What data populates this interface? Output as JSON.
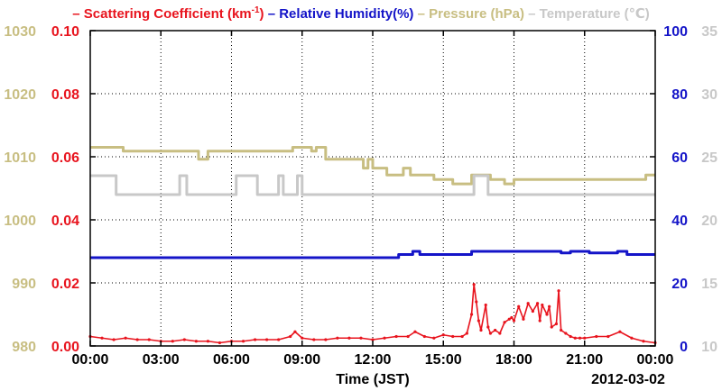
{
  "chart_data": {
    "type": "line",
    "legend": [
      {
        "prefix": "–",
        "name": "Scattering Coefficient (km",
        "sup": "-1",
        "suffix": ")",
        "color": "#e8141e"
      },
      {
        "prefix": "–",
        "name": "Relative Humidity(%)",
        "color": "#1414c8"
      },
      {
        "prefix": "–",
        "name": "Pressure (hPa)",
        "color": "#c8be82"
      },
      {
        "prefix": "–",
        "name": "Temperature (℃)",
        "color": "#c8c8c8"
      }
    ],
    "xlabel": "Time (JST)",
    "date_label": "2012-03-02",
    "x_range": [
      0,
      24
    ],
    "x_ticks": [
      {
        "v": 0,
        "label": "00:00"
      },
      {
        "v": 3,
        "label": "03:00"
      },
      {
        "v": 6,
        "label": "06:00"
      },
      {
        "v": 9,
        "label": "09:00"
      },
      {
        "v": 12,
        "label": "12:00"
      },
      {
        "v": 15,
        "label": "15:00"
      },
      {
        "v": 18,
        "label": "18:00"
      },
      {
        "v": 21,
        "label": "21:00"
      },
      {
        "v": 24,
        "label": "00:00"
      }
    ],
    "axes": {
      "pressure": {
        "range": [
          980,
          1030
        ],
        "ticks": [
          "980",
          "990",
          "1000",
          "1010",
          "1020",
          "1030"
        ],
        "color": "#c8be82"
      },
      "scattering": {
        "range": [
          0,
          0.1
        ],
        "ticks": [
          "0.00",
          "0.02",
          "0.04",
          "0.06",
          "0.08",
          "0.10"
        ],
        "color": "#e8141e"
      },
      "humidity": {
        "range": [
          0,
          100
        ],
        "ticks": [
          "0",
          "20",
          "40",
          "60",
          "80",
          "100"
        ],
        "color": "#1414c8"
      },
      "temperature": {
        "range": [
          10,
          35
        ],
        "ticks": [
          "10",
          "15",
          "20",
          "25",
          "30",
          "35"
        ],
        "color": "#c8c8c8"
      }
    },
    "grid": true,
    "series": [
      {
        "name": "Pressure (hPa)",
        "axis": "pressure",
        "color": "#c8be82",
        "step": true,
        "x": [
          0,
          1.4,
          4.6,
          5.0,
          8.6,
          9.4,
          9.6,
          10.0,
          11.6,
          11.8,
          12.0,
          12.6,
          13.3,
          13.6,
          14.6,
          15.4,
          16.2,
          17.0,
          17.6,
          18.0,
          18.8,
          23.6,
          24
        ],
        "y": [
          1011.5,
          1010.9,
          1009.6,
          1010.9,
          1011.5,
          1010.9,
          1011.5,
          1009.6,
          1008.2,
          1009.6,
          1008.2,
          1007.1,
          1008.2,
          1007.1,
          1006.4,
          1005.7,
          1007.1,
          1006.4,
          1005.7,
          1006.4,
          1006.4,
          1007.1,
          1007.1
        ]
      },
      {
        "name": "Temperature (℃)",
        "axis": "temperature",
        "color": "#c8c8c8",
        "step": true,
        "x": [
          0,
          0.8,
          1.1,
          3.8,
          4.1,
          6.2,
          7.1,
          8.0,
          8.2,
          8.8,
          9.0,
          16.3,
          16.9,
          17.1,
          24
        ],
        "y": [
          23.5,
          23.5,
          22.0,
          23.5,
          22.0,
          23.5,
          22.0,
          23.5,
          22.0,
          23.5,
          22.0,
          23.5,
          22.0,
          22.0,
          22.0
        ]
      },
      {
        "name": "Relative Humidity(%)",
        "axis": "humidity",
        "color": "#1414c8",
        "step": true,
        "x": [
          0,
          13.0,
          13.1,
          13.7,
          14.0,
          15.8,
          16.2,
          20.0,
          20.4,
          21.2,
          22.4,
          22.8,
          24
        ],
        "y": [
          28.0,
          28.0,
          29.0,
          30.0,
          29.0,
          29.0,
          30.0,
          29.5,
          30.0,
          29.5,
          30.0,
          29.0,
          29.0
        ]
      },
      {
        "name": "Scattering Coefficient",
        "axis": "scattering",
        "color": "#e8141e",
        "step": false,
        "x": [
          0,
          0.5,
          1.0,
          1.5,
          2.0,
          2.5,
          3.0,
          3.5,
          4.0,
          4.5,
          5.0,
          5.5,
          6.0,
          6.5,
          7.0,
          7.5,
          8.0,
          8.5,
          8.7,
          9.0,
          9.5,
          10.0,
          10.5,
          11.0,
          11.5,
          12.0,
          12.5,
          13.0,
          13.5,
          13.8,
          14.2,
          14.6,
          15.0,
          15.4,
          15.8,
          16.0,
          16.2,
          16.3,
          16.4,
          16.5,
          16.6,
          16.8,
          16.9,
          17.0,
          17.2,
          17.4,
          17.6,
          17.8,
          17.9,
          18.0,
          18.2,
          18.4,
          18.6,
          18.8,
          19.0,
          19.1,
          19.2,
          19.4,
          19.5,
          19.6,
          19.8,
          19.9,
          20.0,
          20.2,
          20.4,
          20.6,
          20.8,
          21.0,
          21.5,
          22.0,
          22.5,
          23.0,
          23.5,
          24.0
        ],
        "y": [
          0.003,
          0.0025,
          0.002,
          0.0025,
          0.002,
          0.002,
          0.0015,
          0.0015,
          0.002,
          0.0015,
          0.0015,
          0.001,
          0.0015,
          0.0015,
          0.002,
          0.002,
          0.002,
          0.003,
          0.0045,
          0.0025,
          0.002,
          0.002,
          0.0025,
          0.0025,
          0.0025,
          0.002,
          0.0025,
          0.003,
          0.003,
          0.0045,
          0.003,
          0.0025,
          0.0035,
          0.003,
          0.003,
          0.004,
          0.01,
          0.0195,
          0.014,
          0.008,
          0.005,
          0.013,
          0.006,
          0.004,
          0.005,
          0.004,
          0.0075,
          0.0085,
          0.009,
          0.008,
          0.0125,
          0.0085,
          0.0135,
          0.011,
          0.0135,
          0.008,
          0.013,
          0.01,
          0.0125,
          0.006,
          0.007,
          0.0175,
          0.005,
          0.004,
          0.003,
          0.0025,
          0.0025,
          0.0025,
          0.003,
          0.003,
          0.0045,
          0.0025,
          0.0015,
          0.001
        ]
      }
    ]
  }
}
